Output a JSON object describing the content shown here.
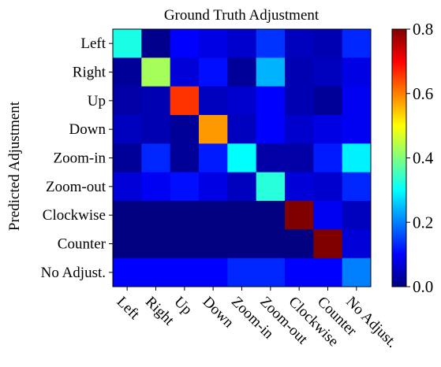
{
  "chart_data": {
    "type": "heatmap",
    "title": "Ground Truth Adjustment",
    "xlabel": "",
    "ylabel": "Predicted Adjustment",
    "x_categories": [
      "Left",
      "Right",
      "Up",
      "Down",
      "Zoom-in",
      "Zoom-out",
      "Clockwise",
      "Counter",
      "No Adjust."
    ],
    "y_categories": [
      "Left",
      "Right",
      "Up",
      "Down",
      "Zoom-in",
      "Zoom-out",
      "Clockwise",
      "Counter",
      "No Adjust."
    ],
    "values": [
      [
        0.32,
        0.01,
        0.1,
        0.08,
        0.06,
        0.14,
        0.05,
        0.04,
        0.13
      ],
      [
        0.02,
        0.43,
        0.07,
        0.11,
        0.02,
        0.24,
        0.04,
        0.05,
        0.08
      ],
      [
        0.03,
        0.04,
        0.66,
        0.05,
        0.06,
        0.1,
        0.04,
        0.02,
        0.09
      ],
      [
        0.05,
        0.04,
        0.02,
        0.58,
        0.05,
        0.1,
        0.06,
        0.08,
        0.09
      ],
      [
        0.02,
        0.13,
        0.02,
        0.12,
        0.3,
        0.03,
        0.03,
        0.12,
        0.29
      ],
      [
        0.07,
        0.09,
        0.11,
        0.08,
        0.05,
        0.33,
        0.07,
        0.06,
        0.13
      ],
      [
        0.0,
        0.0,
        0.0,
        0.0,
        0.0,
        0.0,
        0.8,
        0.09,
        0.05
      ],
      [
        0.0,
        0.0,
        0.0,
        0.0,
        0.0,
        0.0,
        0.0,
        0.8,
        0.07
      ],
      [
        0.1,
        0.1,
        0.1,
        0.1,
        0.13,
        0.13,
        0.1,
        0.1,
        0.2
      ]
    ],
    "colormap": "jet",
    "vmin": 0.0,
    "vmax": 0.8,
    "colorbar_ticks": [
      "0.0",
      "0.2",
      "0.4",
      "0.6",
      "0.8"
    ],
    "grid": false,
    "legend": "colorbar-right"
  }
}
